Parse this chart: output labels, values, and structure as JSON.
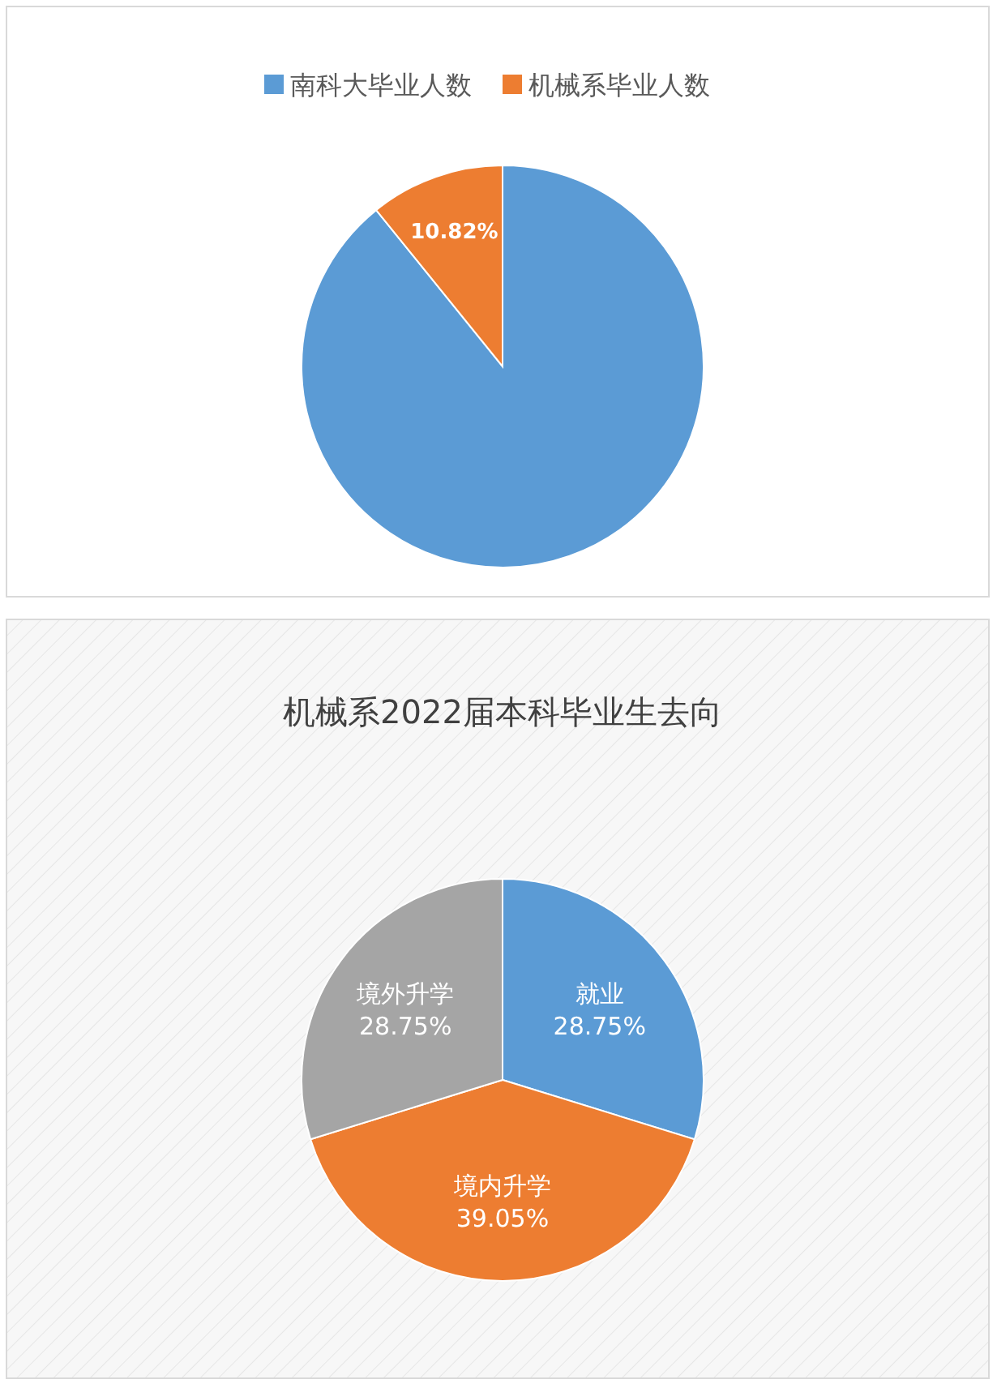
{
  "chart_data": [
    {
      "type": "pie",
      "categories": [
        "南科大毕业人数",
        "机械系毕业人数"
      ],
      "values": [
        89.18,
        10.82
      ],
      "colors": [
        "#5b9bd5",
        "#ed7d31"
      ],
      "value_labels": [
        null,
        "10.82%"
      ],
      "legend": "top"
    },
    {
      "type": "pie",
      "title": "机械系2022届本科毕业生去向",
      "categories": [
        "就业",
        "境内升学",
        "境外升学"
      ],
      "values": [
        28.75,
        39.05,
        28.75
      ],
      "colors": [
        "#5b9bd5",
        "#ed7d31",
        "#a5a5a5"
      ],
      "value_labels": [
        "28.75%",
        "39.05%",
        "28.75%"
      ],
      "legend": false
    }
  ]
}
